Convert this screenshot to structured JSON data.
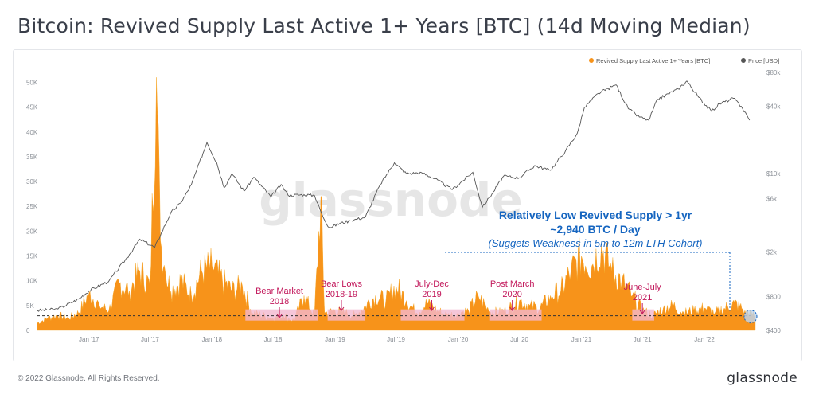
{
  "title": "Bitcoin: Revived Supply Last Active 1+ Years [BTC] (14d Moving Median)",
  "footer": {
    "copyright": "© 2022 Glassnode. All Rights Reserved.",
    "brand": "glassnode"
  },
  "watermark": "glassnode",
  "colors": {
    "supply": "#f7931a",
    "price": "#555555",
    "band": "#f2b8d0",
    "annotation_pink": "#c2185b",
    "annotation_blue": "#1565c0",
    "dashed": "#333333"
  },
  "chart_data": {
    "type": "area",
    "title": "Bitcoin: Revived Supply Last Active 1+ Years [BTC] (14d Moving Median)",
    "legend": {
      "placement": "top-right",
      "entries": [
        {
          "label": "Revived Supply Last Active 1+ Years [BTC]",
          "color": "#f7931a"
        },
        {
          "label": "Price [USD]",
          "color": "#555555"
        }
      ]
    },
    "x_range": [
      "2016-08-01",
      "2022-06-01"
    ],
    "x_ticks": [
      "Jan '17",
      "Jul '17",
      "Jan '18",
      "Jul '18",
      "Jan '19",
      "Jul '19",
      "Jan '20",
      "Jul '20",
      "Jan '21",
      "Jul '21",
      "Jan '22"
    ],
    "x_tick_dates": [
      "2017-01-01",
      "2017-07-01",
      "2018-01-01",
      "2018-07-01",
      "2019-01-01",
      "2019-07-01",
      "2020-01-01",
      "2020-07-01",
      "2021-01-01",
      "2021-07-01",
      "2022-01-01"
    ],
    "y_left": {
      "min": 0,
      "max": 52000,
      "ticks": [
        "0",
        "5K",
        "10K",
        "15K",
        "20K",
        "25K",
        "30K",
        "35K",
        "40K",
        "45K",
        "50K"
      ],
      "tick_values": [
        0,
        5000,
        10000,
        15000,
        20000,
        25000,
        30000,
        35000,
        40000,
        45000,
        50000
      ]
    },
    "y_right": {
      "scale": "log",
      "min": 400,
      "max": 80000,
      "ticks": [
        "$400",
        "$800",
        "$2k",
        "$6k",
        "$10k",
        "$40k",
        "$80k"
      ],
      "tick_values": [
        400,
        800,
        2000,
        6000,
        10000,
        40000,
        80000
      ]
    },
    "series": [
      {
        "name": "Revived Supply Last Active 1+ Years [BTC]",
        "axis": "left",
        "x": [
          "2016-08-01",
          "2016-09-01",
          "2016-10-01",
          "2016-11-01",
          "2016-12-01",
          "2017-01-01",
          "2017-02-01",
          "2017-03-01",
          "2017-04-01",
          "2017-05-01",
          "2017-06-01",
          "2017-07-01",
          "2017-07-20",
          "2017-08-01",
          "2017-08-15",
          "2017-09-01",
          "2017-10-01",
          "2017-11-01",
          "2017-12-01",
          "2018-01-01",
          "2018-02-01",
          "2018-03-01",
          "2018-04-01",
          "2018-05-01",
          "2018-06-01",
          "2018-07-01",
          "2018-08-01",
          "2018-09-01",
          "2018-10-01",
          "2018-11-01",
          "2018-11-20",
          "2018-12-01",
          "2019-01-01",
          "2019-02-01",
          "2019-03-01",
          "2019-04-01",
          "2019-05-01",
          "2019-06-01",
          "2019-07-01",
          "2019-08-01",
          "2019-09-01",
          "2019-10-01",
          "2019-11-01",
          "2019-12-01",
          "2020-01-01",
          "2020-02-01",
          "2020-03-01",
          "2020-04-01",
          "2020-05-01",
          "2020-06-01",
          "2020-07-01",
          "2020-08-01",
          "2020-09-01",
          "2020-10-01",
          "2020-11-01",
          "2020-12-01",
          "2021-01-01",
          "2021-02-01",
          "2021-03-01",
          "2021-04-01",
          "2021-05-01",
          "2021-06-01",
          "2021-07-01",
          "2021-08-01",
          "2021-09-01",
          "2021-10-01",
          "2021-11-01",
          "2021-12-01",
          "2022-01-01",
          "2022-02-01",
          "2022-03-01",
          "2022-04-01",
          "2022-05-01",
          "2022-06-01"
        ],
        "values": [
          1500,
          2500,
          3000,
          2500,
          3500,
          7500,
          5000,
          4000,
          9500,
          8000,
          12000,
          9000,
          51000,
          18000,
          12000,
          8000,
          10000,
          7000,
          12000,
          13000,
          10000,
          8000,
          9000,
          3500,
          3000,
          2500,
          3000,
          2000,
          7000,
          3000,
          27000,
          3500,
          4000,
          3500,
          3000,
          5000,
          7000,
          6000,
          9000,
          6000,
          3500,
          5500,
          4000,
          3000,
          3500,
          4000,
          7000,
          4000,
          3500,
          4500,
          6000,
          5000,
          4500,
          7000,
          8000,
          12000,
          15000,
          13000,
          17000,
          12000,
          10000,
          7000,
          4000,
          3000,
          4500,
          5000,
          3500,
          4000,
          4500,
          3500,
          4500,
          5500,
          4000,
          2940
        ]
      },
      {
        "name": "Price [USD]",
        "axis": "right",
        "x": [
          "2016-08-01",
          "2016-10-01",
          "2016-12-01",
          "2017-01-01",
          "2017-03-01",
          "2017-05-01",
          "2017-06-01",
          "2017-07-15",
          "2017-09-01",
          "2017-10-01",
          "2017-11-01",
          "2017-12-17",
          "2018-01-15",
          "2018-02-06",
          "2018-03-01",
          "2018-04-06",
          "2018-05-05",
          "2018-06-25",
          "2018-07-25",
          "2018-08-15",
          "2018-10-01",
          "2018-11-01",
          "2018-11-25",
          "2018-12-15",
          "2019-01-15",
          "2019-02-15",
          "2019-04-01",
          "2019-05-15",
          "2019-06-26",
          "2019-08-01",
          "2019-09-15",
          "2019-10-25",
          "2019-12-15",
          "2020-02-14",
          "2020-03-13",
          "2020-04-15",
          "2020-05-15",
          "2020-07-01",
          "2020-08-15",
          "2020-10-01",
          "2020-11-15",
          "2020-12-20",
          "2021-01-10",
          "2021-02-20",
          "2021-04-14",
          "2021-05-20",
          "2021-06-22",
          "2021-07-20",
          "2021-08-15",
          "2021-09-07",
          "2021-10-15",
          "2021-11-10",
          "2021-12-15",
          "2022-01-22",
          "2022-02-15",
          "2022-03-28",
          "2022-04-20",
          "2022-05-15"
        ],
        "values": [
          600,
          620,
          760,
          900,
          1100,
          1900,
          2600,
          2200,
          4500,
          5500,
          8000,
          19000,
          12500,
          7500,
          10000,
          7000,
          9300,
          6200,
          8000,
          6400,
          6500,
          6400,
          4200,
          3300,
          3600,
          3800,
          4100,
          8000,
          12500,
          10000,
          10200,
          9000,
          7200,
          10300,
          5000,
          6900,
          9500,
          9200,
          11800,
          10700,
          16000,
          23000,
          39000,
          52000,
          62000,
          38000,
          32000,
          30000,
          46000,
          50000,
          57000,
          67000,
          48000,
          36000,
          42000,
          47000,
          40000,
          30000
        ]
      }
    ],
    "annotations": [
      {
        "text": [
          "Bear Market",
          "2018"
        ],
        "color": "#c2185b"
      },
      {
        "text": [
          "Bear Lows",
          "2018-19"
        ],
        "color": "#c2185b"
      },
      {
        "text": [
          "July-Dec",
          "2019"
        ],
        "color": "#c2185b"
      },
      {
        "text": [
          "Post March",
          "2020"
        ],
        "color": "#c2185b"
      },
      {
        "text": [
          "June-July",
          "2021"
        ],
        "color": "#c2185b"
      },
      {
        "text": [
          "Relatively Low Revived Supply > 1yr",
          "~2,940 BTC / Day"
        ],
        "color": "#1565c0"
      },
      {
        "text": [
          "(Suggets Weakness in 5m to 12m LTH Cohort)"
        ],
        "color": "#1565c0"
      }
    ],
    "reference_line": {
      "value": 2940,
      "axis": "left",
      "style": "dashed"
    }
  }
}
